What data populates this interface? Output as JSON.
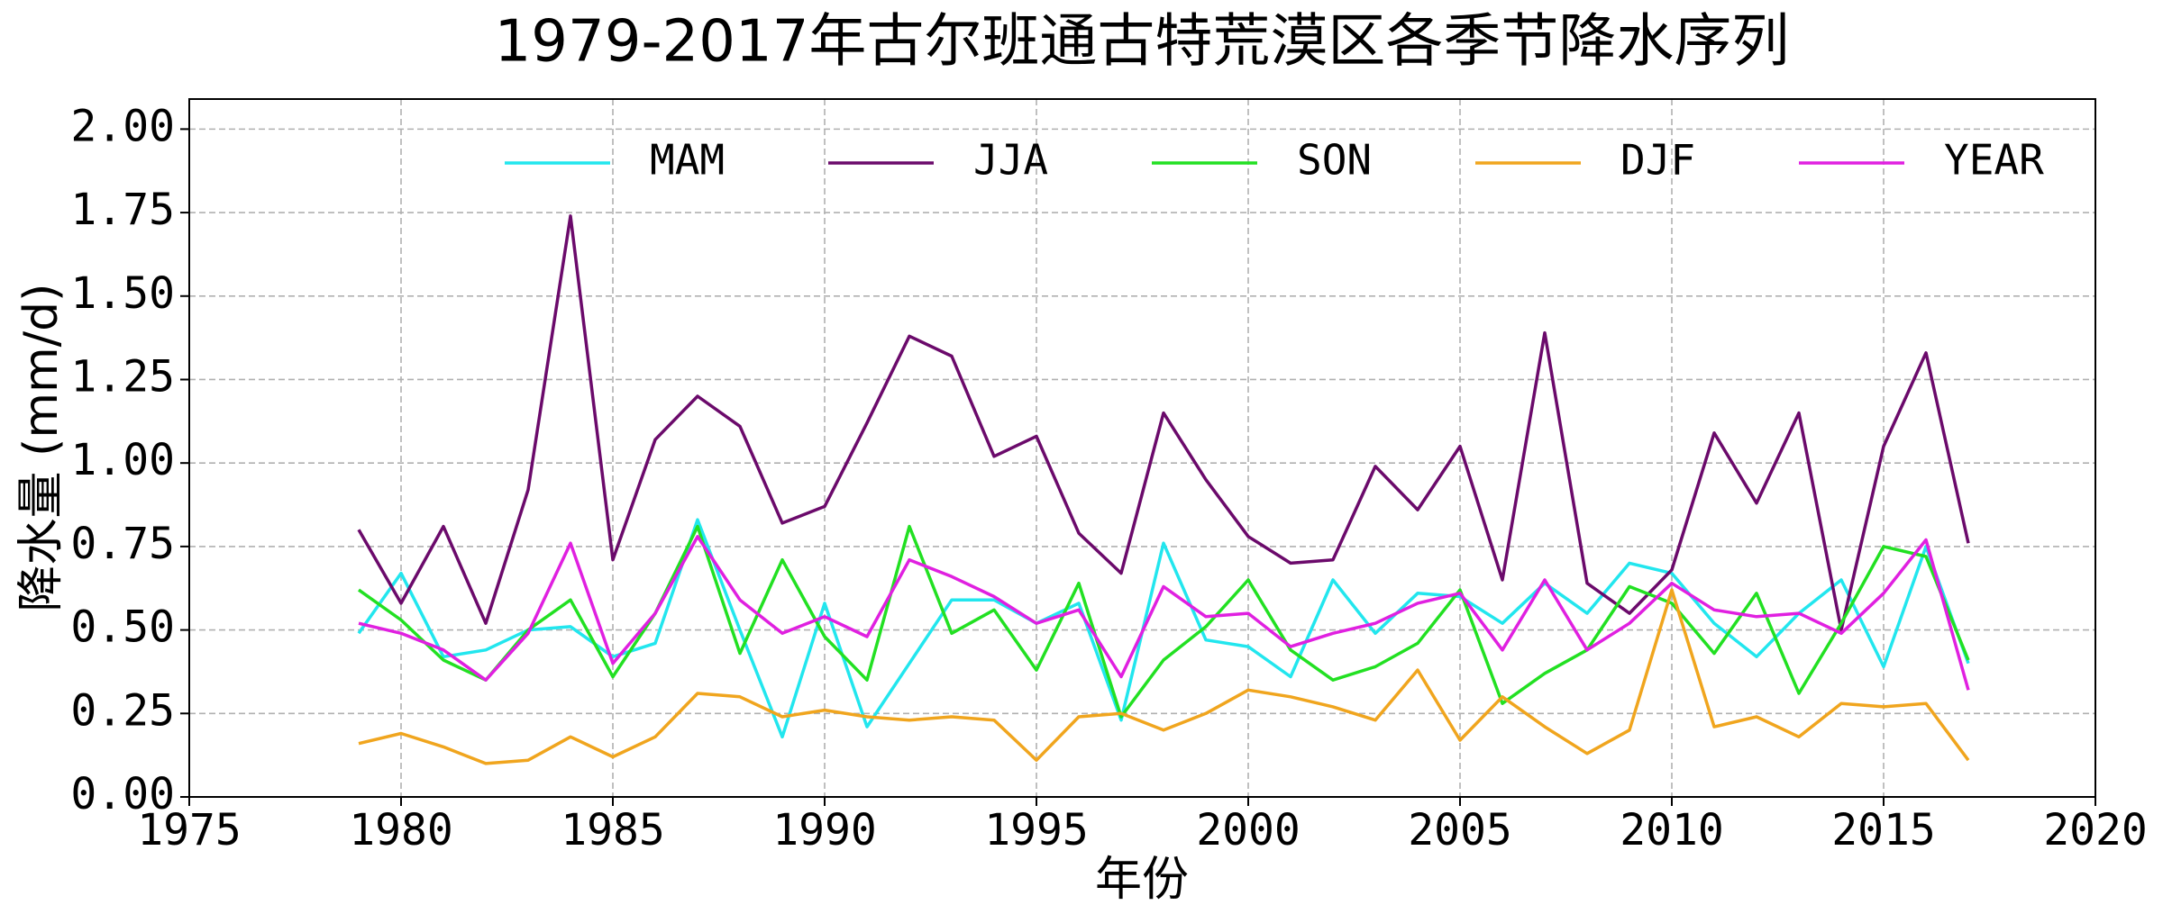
{
  "chart_data": {
    "type": "line",
    "title": "1979-2017年古尔班通古特荒漠区各季节降水序列",
    "xlabel": "年份",
    "ylabel": "降水量 (mm/d)",
    "x": [
      1979,
      1980,
      1981,
      1982,
      1983,
      1984,
      1985,
      1986,
      1987,
      1988,
      1989,
      1990,
      1991,
      1992,
      1993,
      1994,
      1995,
      1996,
      1997,
      1998,
      1999,
      2000,
      2001,
      2002,
      2003,
      2004,
      2005,
      2006,
      2007,
      2008,
      2009,
      2010,
      2011,
      2012,
      2013,
      2014,
      2015,
      2016,
      2017
    ],
    "series": [
      {
        "name": "MAM",
        "color": "#22e6ee",
        "values": [
          0.49,
          0.67,
          0.42,
          0.44,
          0.5,
          0.51,
          0.42,
          0.46,
          0.83,
          0.5,
          0.18,
          0.58,
          0.21,
          0.4,
          0.59,
          0.59,
          0.52,
          0.58,
          0.23,
          0.76,
          0.47,
          0.45,
          0.36,
          0.65,
          0.49,
          0.61,
          0.6,
          0.52,
          0.64,
          0.55,
          0.7,
          0.67,
          0.52,
          0.42,
          0.55,
          0.65,
          0.39,
          0.75,
          0.4
        ]
      },
      {
        "name": "JJA",
        "color": "#6b0a6b",
        "values": [
          0.8,
          0.58,
          0.81,
          0.52,
          0.92,
          1.74,
          0.71,
          1.07,
          1.2,
          1.11,
          0.82,
          0.87,
          1.12,
          1.38,
          1.32,
          1.02,
          1.08,
          0.79,
          0.67,
          1.15,
          0.95,
          0.78,
          0.7,
          0.71,
          0.99,
          0.86,
          1.05,
          0.65,
          1.39,
          0.64,
          0.55,
          0.68,
          1.09,
          0.88,
          1.15,
          0.5,
          1.05,
          1.33,
          0.76
        ]
      },
      {
        "name": "SON",
        "color": "#22e022",
        "values": [
          0.62,
          0.53,
          0.41,
          0.35,
          0.5,
          0.59,
          0.36,
          0.55,
          0.81,
          0.43,
          0.71,
          0.48,
          0.35,
          0.81,
          0.49,
          0.56,
          0.38,
          0.64,
          0.24,
          0.41,
          0.51,
          0.65,
          0.44,
          0.35,
          0.39,
          0.46,
          0.62,
          0.28,
          0.37,
          0.44,
          0.63,
          0.58,
          0.43,
          0.61,
          0.31,
          0.52,
          0.75,
          0.72,
          0.41
        ]
      },
      {
        "name": "DJF",
        "color": "#f0a51e",
        "values": [
          0.16,
          0.19,
          0.15,
          0.1,
          0.11,
          0.18,
          0.12,
          0.18,
          0.31,
          0.3,
          0.24,
          0.26,
          0.24,
          0.23,
          0.24,
          0.23,
          0.11,
          0.24,
          0.25,
          0.2,
          0.25,
          0.32,
          0.3,
          0.27,
          0.23,
          0.38,
          0.17,
          0.3,
          0.21,
          0.13,
          0.2,
          0.62,
          0.21,
          0.24,
          0.18,
          0.28,
          0.27,
          0.28,
          0.11
        ]
      },
      {
        "name": "YEAR",
        "color": "#e020e0",
        "values": [
          0.52,
          0.49,
          0.44,
          0.35,
          0.49,
          0.76,
          0.4,
          0.55,
          0.78,
          0.59,
          0.49,
          0.54,
          0.48,
          0.71,
          0.66,
          0.6,
          0.52,
          0.56,
          0.36,
          0.63,
          0.54,
          0.55,
          0.45,
          0.49,
          0.52,
          0.58,
          0.61,
          0.44,
          0.65,
          0.44,
          0.52,
          0.64,
          0.56,
          0.54,
          0.55,
          0.49,
          0.61,
          0.77,
          0.32
        ]
      }
    ],
    "xlim": [
      1975,
      2020
    ],
    "xticks": [
      1975,
      1980,
      1985,
      1990,
      1995,
      2000,
      2005,
      2010,
      2015,
      2020
    ],
    "ylim": [
      0,
      2.09
    ],
    "yticks": [
      {
        "value": 0,
        "label": "0.00"
      },
      {
        "value": 0.25,
        "label": "0.25"
      },
      {
        "value": 0.5,
        "label": "0.50"
      },
      {
        "value": 0.75,
        "label": "0.75"
      },
      {
        "value": 1,
        "label": "1.00"
      },
      {
        "value": 1.25,
        "label": "1.25"
      },
      {
        "value": 1.5,
        "label": "1.50"
      },
      {
        "value": 1.75,
        "label": "1.75"
      },
      {
        "value": 2,
        "label": "2.00"
      }
    ],
    "grid": true,
    "legend": "upper right"
  }
}
